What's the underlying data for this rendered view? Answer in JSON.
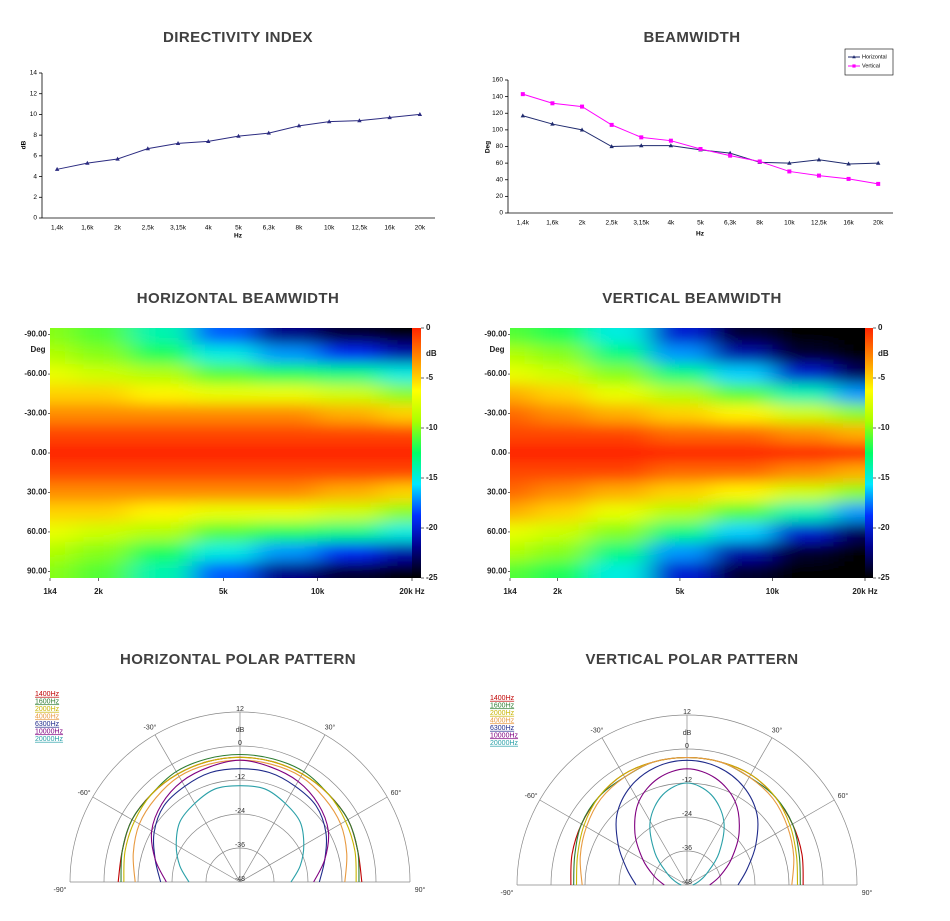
{
  "chart_data": [
    {
      "type": "line",
      "title": "DIRECTIVITY INDEX",
      "categories": [
        "1,4k",
        "1,6k",
        "2k",
        "2,5k",
        "3,15k",
        "4k",
        "5k",
        "6,3k",
        "8k",
        "10k",
        "12,5k",
        "16k",
        "20k"
      ],
      "values": [
        4.7,
        5.3,
        5.7,
        6.7,
        7.2,
        7.4,
        7.9,
        8.2,
        8.9,
        9.3,
        9.4,
        9.7,
        10.0
      ],
      "color": "#2b2b80",
      "marker": "triangle",
      "ylim": [
        0,
        14
      ],
      "yticks": [
        0,
        2,
        4,
        6,
        8,
        10,
        12,
        14
      ],
      "ylabel": "dB",
      "xlabel": "Hz",
      "grid": false
    },
    {
      "type": "line",
      "title": "BEAMWIDTH",
      "categories": [
        "1,4k",
        "1,6k",
        "2k",
        "2,5k",
        "3,15k",
        "4k",
        "5k",
        "6,3k",
        "8k",
        "10k",
        "12,5k",
        "16k",
        "20k"
      ],
      "series": [
        {
          "name": "Horizontal",
          "color": "#1f2a6e",
          "marker": "triangle",
          "values": [
            117,
            107,
            100,
            80,
            81,
            81,
            76,
            72,
            61,
            60,
            64,
            59,
            60
          ]
        },
        {
          "name": "Vertical",
          "color": "#ff00ff",
          "marker": "square",
          "values": [
            143,
            132,
            128,
            106,
            91,
            87,
            77,
            69,
            62,
            50,
            45,
            41,
            35
          ]
        }
      ],
      "ylim": [
        0,
        160
      ],
      "yticks": [
        0,
        20,
        40,
        60,
        80,
        100,
        120,
        140,
        160
      ],
      "ylabel": "Deg",
      "xlabel": "Hz",
      "grid": false,
      "legend": "upper right"
    },
    {
      "type": "heatmap",
      "title": "HORIZONTAL BEAMWIDTH",
      "x": [
        1400,
        2000,
        3150,
        5000,
        8000,
        12500,
        20000
      ],
      "y": [
        -90,
        -75,
        -60,
        -45,
        -30,
        -15,
        0,
        15,
        30,
        45,
        60,
        75,
        90
      ],
      "z": [
        [
          -10,
          -11,
          -14,
          -18,
          -22,
          -24,
          -25
        ],
        [
          -9,
          -10,
          -12,
          -15,
          -17,
          -19,
          -21
        ],
        [
          -7,
          -8,
          -9,
          -11,
          -12,
          -13,
          -15
        ],
        [
          -5,
          -5,
          -6,
          -7,
          -7,
          -8,
          -10
        ],
        [
          -3,
          -3,
          -3,
          -3,
          -3,
          -4,
          -5
        ],
        [
          -1,
          -1,
          -1,
          -1,
          -1,
          -1,
          -1
        ],
        [
          0,
          0,
          0,
          0,
          0,
          0,
          0
        ],
        [
          -1,
          -1,
          -1,
          -1,
          -1,
          -1,
          -1
        ],
        [
          -3,
          -3,
          -3,
          -3,
          -3,
          -4,
          -5
        ],
        [
          -5,
          -5,
          -6,
          -7,
          -7,
          -8,
          -10
        ],
        [
          -7,
          -8,
          -9,
          -11,
          -12,
          -13,
          -15
        ],
        [
          -9,
          -10,
          -12,
          -15,
          -17,
          -19,
          -21
        ],
        [
          -10,
          -11,
          -14,
          -18,
          -22,
          -24,
          -25
        ]
      ],
      "xlim": [
        1400,
        20000
      ],
      "xscale": "log",
      "xticks": [
        {
          "value": 1400,
          "label": "1k4"
        },
        {
          "value": 2000,
          "label": "2k"
        },
        {
          "value": 5000,
          "label": "5k"
        },
        {
          "value": 10000,
          "label": "10k"
        },
        {
          "value": 20000,
          "label": "20k Hz"
        }
      ],
      "ylim": [
        95,
        -95
      ],
      "yticks": [
        {
          "value": -90,
          "label": "-90.00"
        },
        {
          "value": -60,
          "label": "-60.00"
        },
        {
          "value": -30,
          "label": "-30.00"
        },
        {
          "value": 0,
          "label": "0.00"
        },
        {
          "value": 30,
          "label": "30.00"
        },
        {
          "value": 60,
          "label": "60.00"
        },
        {
          "value": 90,
          "label": "90.00"
        }
      ],
      "ylabel": "Deg",
      "zlim": [
        -25,
        0
      ],
      "zticks": [
        0,
        -5,
        -10,
        -15,
        -20,
        -25
      ],
      "zlabel": "dB",
      "colorscale": [
        "#000000",
        "#00008c",
        "#0030ff",
        "#00e8ff",
        "#00ff66",
        "#a8ff00",
        "#ffff00",
        "#ff9000",
        "#ff2400"
      ]
    },
    {
      "type": "heatmap",
      "title": "VERTICAL BEAMWIDTH",
      "x": [
        1400,
        2000,
        3150,
        5000,
        8000,
        12500,
        20000
      ],
      "y": [
        -90,
        -75,
        -60,
        -45,
        -30,
        -15,
        0,
        15,
        30,
        45,
        60,
        75,
        90
      ],
      "z": [
        [
          -11,
          -12,
          -15,
          -20,
          -24,
          -25,
          -25
        ],
        [
          -9,
          -10,
          -13,
          -17,
          -21,
          -24,
          -25
        ],
        [
          -7,
          -8,
          -10,
          -13,
          -16,
          -20,
          -23
        ],
        [
          -4,
          -5,
          -7,
          -9,
          -11,
          -14,
          -17
        ],
        [
          -2,
          -3,
          -4,
          -5,
          -6,
          -8,
          -10
        ],
        [
          -1,
          -1,
          -1,
          -2,
          -2,
          -3,
          -4
        ],
        [
          0,
          0,
          0,
          0,
          0,
          0,
          0
        ],
        [
          -1,
          -1,
          -1,
          -2,
          -2,
          -3,
          -4
        ],
        [
          -2,
          -3,
          -4,
          -5,
          -6,
          -8,
          -10
        ],
        [
          -4,
          -5,
          -7,
          -9,
          -11,
          -14,
          -17
        ],
        [
          -7,
          -8,
          -10,
          -13,
          -16,
          -20,
          -23
        ],
        [
          -9,
          -10,
          -13,
          -17,
          -21,
          -24,
          -25
        ],
        [
          -11,
          -12,
          -15,
          -20,
          -24,
          -25,
          -25
        ]
      ],
      "xlim": [
        1400,
        20000
      ],
      "xscale": "log",
      "xticks": [
        {
          "value": 1400,
          "label": "1k4"
        },
        {
          "value": 2000,
          "label": "2k"
        },
        {
          "value": 5000,
          "label": "5k"
        },
        {
          "value": 10000,
          "label": "10k"
        },
        {
          "value": 20000,
          "label": "20k Hz"
        }
      ],
      "ylim": [
        95,
        -95
      ],
      "yticks": [
        {
          "value": -90,
          "label": "-90.00"
        },
        {
          "value": -60,
          "label": "-60.00"
        },
        {
          "value": -30,
          "label": "-30.00"
        },
        {
          "value": 0,
          "label": "0.00"
        },
        {
          "value": 30,
          "label": "30.00"
        },
        {
          "value": 60,
          "label": "60.00"
        },
        {
          "value": 90,
          "label": "90.00"
        }
      ],
      "ylabel": "Deg",
      "zlim": [
        -25,
        0
      ],
      "zticks": [
        0,
        -5,
        -10,
        -15,
        -20,
        -25
      ],
      "zlabel": "dB",
      "colorscale": [
        "#000000",
        "#00008c",
        "#0030ff",
        "#00e8ff",
        "#00ff66",
        "#a8ff00",
        "#ffff00",
        "#ff9000",
        "#ff2400"
      ]
    },
    {
      "type": "polar",
      "title": "HORIZONTAL POLAR PATTERN",
      "theta": [
        -90,
        -75,
        -60,
        -45,
        -30,
        -15,
        0,
        15,
        30,
        45,
        60,
        75,
        90
      ],
      "thetaticks": [
        {
          "value": -90,
          "label": "-90°"
        },
        {
          "value": -60,
          "label": "-60°"
        },
        {
          "value": -30,
          "label": "-30°"
        },
        {
          "value": 30,
          "label": "30°"
        },
        {
          "value": 60,
          "label": "60°"
        },
        {
          "value": 90,
          "label": "90°"
        }
      ],
      "rlim": [
        -48,
        12
      ],
      "rticks": [
        12,
        0,
        -12,
        -24,
        -36,
        -48
      ],
      "rlabel": "dB",
      "series": [
        {
          "name": "1400Hz",
          "color": "#c00000",
          "values": [
            -5,
            -5,
            -4,
            -4,
            -4,
            -4,
            -4,
            -4,
            -4,
            -4,
            -4,
            -5,
            -5
          ]
        },
        {
          "name": "1600Hz",
          "color": "#2e7d32",
          "values": [
            -6,
            -5,
            -4,
            -4,
            -3,
            -3,
            -3,
            -3,
            -3,
            -4,
            -4,
            -5,
            -6
          ]
        },
        {
          "name": "2000Hz",
          "color": "#c8b400",
          "values": [
            -7,
            -6,
            -5,
            -4,
            -4,
            -4,
            -4,
            -4,
            -4,
            -4,
            -5,
            -6,
            -7
          ]
        },
        {
          "name": "4000Hz",
          "color": "#e89a40",
          "values": [
            -11,
            -9,
            -7,
            -6,
            -5,
            -5,
            -5,
            -5,
            -5,
            -6,
            -7,
            -9,
            -11
          ]
        },
        {
          "name": "6300Hz",
          "color": "#1f2a8a",
          "values": [
            -20,
            -17,
            -13,
            -10,
            -9,
            -8,
            -8,
            -8,
            -9,
            -10,
            -13,
            -17,
            -20
          ]
        },
        {
          "name": "10000Hz",
          "color": "#800080",
          "values": [
            -22,
            -17,
            -12,
            -9,
            -7,
            -6,
            -5,
            -6,
            -7,
            -9,
            -12,
            -17,
            -22
          ]
        },
        {
          "name": "20000Hz",
          "color": "#2aa0a8",
          "values": [
            -30,
            -26,
            -22,
            -18,
            -16,
            -14,
            -14,
            -14,
            -16,
            -18,
            -22,
            -26,
            -30
          ]
        }
      ]
    },
    {
      "type": "polar",
      "title": "VERTICAL POLAR PATTERN",
      "theta": [
        -90,
        -75,
        -60,
        -45,
        -30,
        -15,
        0,
        15,
        30,
        45,
        60,
        75,
        90
      ],
      "thetaticks": [
        {
          "value": -90,
          "label": "-90°"
        },
        {
          "value": -60,
          "label": "-60°"
        },
        {
          "value": -30,
          "label": "-30°"
        },
        {
          "value": 30,
          "label": "30°"
        },
        {
          "value": 60,
          "label": "60°"
        },
        {
          "value": 90,
          "label": "90°"
        }
      ],
      "rlim": [
        -48,
        12
      ],
      "rticks": [
        12,
        0,
        -12,
        -24,
        -36,
        -48
      ],
      "rlabel": "dB",
      "series": [
        {
          "name": "1400Hz",
          "color": "#c00000",
          "values": [
            -7,
            -6,
            -5,
            -4,
            -3,
            -3,
            -3,
            -3,
            -3,
            -4,
            -5,
            -6,
            -7
          ]
        },
        {
          "name": "1600Hz",
          "color": "#2e7d32",
          "values": [
            -8,
            -7,
            -5,
            -4,
            -4,
            -3,
            -3,
            -3,
            -4,
            -4,
            -5,
            -7,
            -8
          ]
        },
        {
          "name": "2000Hz",
          "color": "#c8b400",
          "values": [
            -9,
            -8,
            -6,
            -4,
            -3,
            -3,
            -3,
            -3,
            -3,
            -4,
            -6,
            -8,
            -9
          ]
        },
        {
          "name": "4000Hz",
          "color": "#e89a40",
          "values": [
            -11,
            -9,
            -7,
            -5,
            -4,
            -3,
            -3,
            -3,
            -4,
            -5,
            -7,
            -9,
            -11
          ]
        },
        {
          "name": "6300Hz",
          "color": "#1f2a8a",
          "values": [
            -30,
            -26,
            -20,
            -13,
            -8,
            -5,
            -4,
            -5,
            -8,
            -13,
            -20,
            -26,
            -30
          ]
        },
        {
          "name": "10000Hz",
          "color": "#800080",
          "values": [
            -40,
            -36,
            -30,
            -22,
            -14,
            -9,
            -7,
            -9,
            -14,
            -22,
            -30,
            -36,
            -40
          ]
        },
        {
          "name": "20000Hz",
          "color": "#2aa0a8",
          "values": [
            -46,
            -44,
            -40,
            -32,
            -22,
            -15,
            -12,
            -15,
            -22,
            -32,
            -40,
            -44,
            -46
          ]
        }
      ]
    }
  ]
}
